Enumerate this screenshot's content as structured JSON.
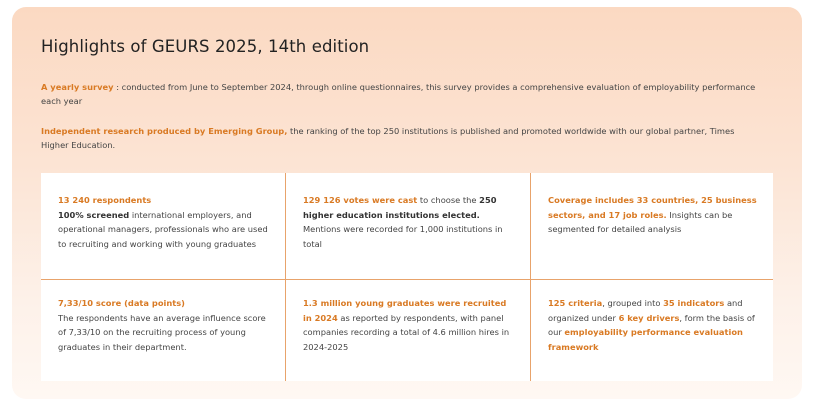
{
  "title": "Highlights of GEURS 2025, 14th edition",
  "intro": {
    "p1_highlight": "A yearly survey",
    "p1_text": " : conducted from June to September 2024, through online questionnaires, this survey provides a comprehensive evaluation of employability performance each year",
    "p2_highlight": "Independent research produced by Emerging Group,",
    "p2_text": " the ranking of the top 250 institutions is published and promoted worldwide with our global partner, Times Higher Education."
  },
  "cards": [
    {
      "line1": "13 240 respondents",
      "bold": "100% screened",
      "text": " international employers, and operational managers, professionals who are used to recruiting and working with young graduates"
    },
    {
      "highlight": "129 126 votes were cast",
      "text1": " to choose the ",
      "bold": "250 higher education institutions elected.",
      "text2": " Mentions were recorded for 1,000 institutions in total"
    },
    {
      "highlight": "Coverage includes 33 countries, 25 business sectors, and 17 job roles.",
      "text": " Insights can be segmented for detailed analysis"
    },
    {
      "line1": "7,33/10 score (data points)",
      "text": "The respondents have an average influence score of 7,33/10 on the recruiting process of young graduates in their department."
    },
    {
      "highlight": "1.3 million young graduates were recruited in 2024",
      "text": " as reported by respondents, with panel companies recording a total of 4.6 million hires in 2024-2025"
    },
    {
      "h1": "125 criteria",
      "t1": ", grouped into ",
      "h2": "35 indicators",
      "t2": " and organized under ",
      "h3": "6 key drivers",
      "t3": ", form the basis of our ",
      "h4": "employability performance evaluation framework"
    }
  ]
}
